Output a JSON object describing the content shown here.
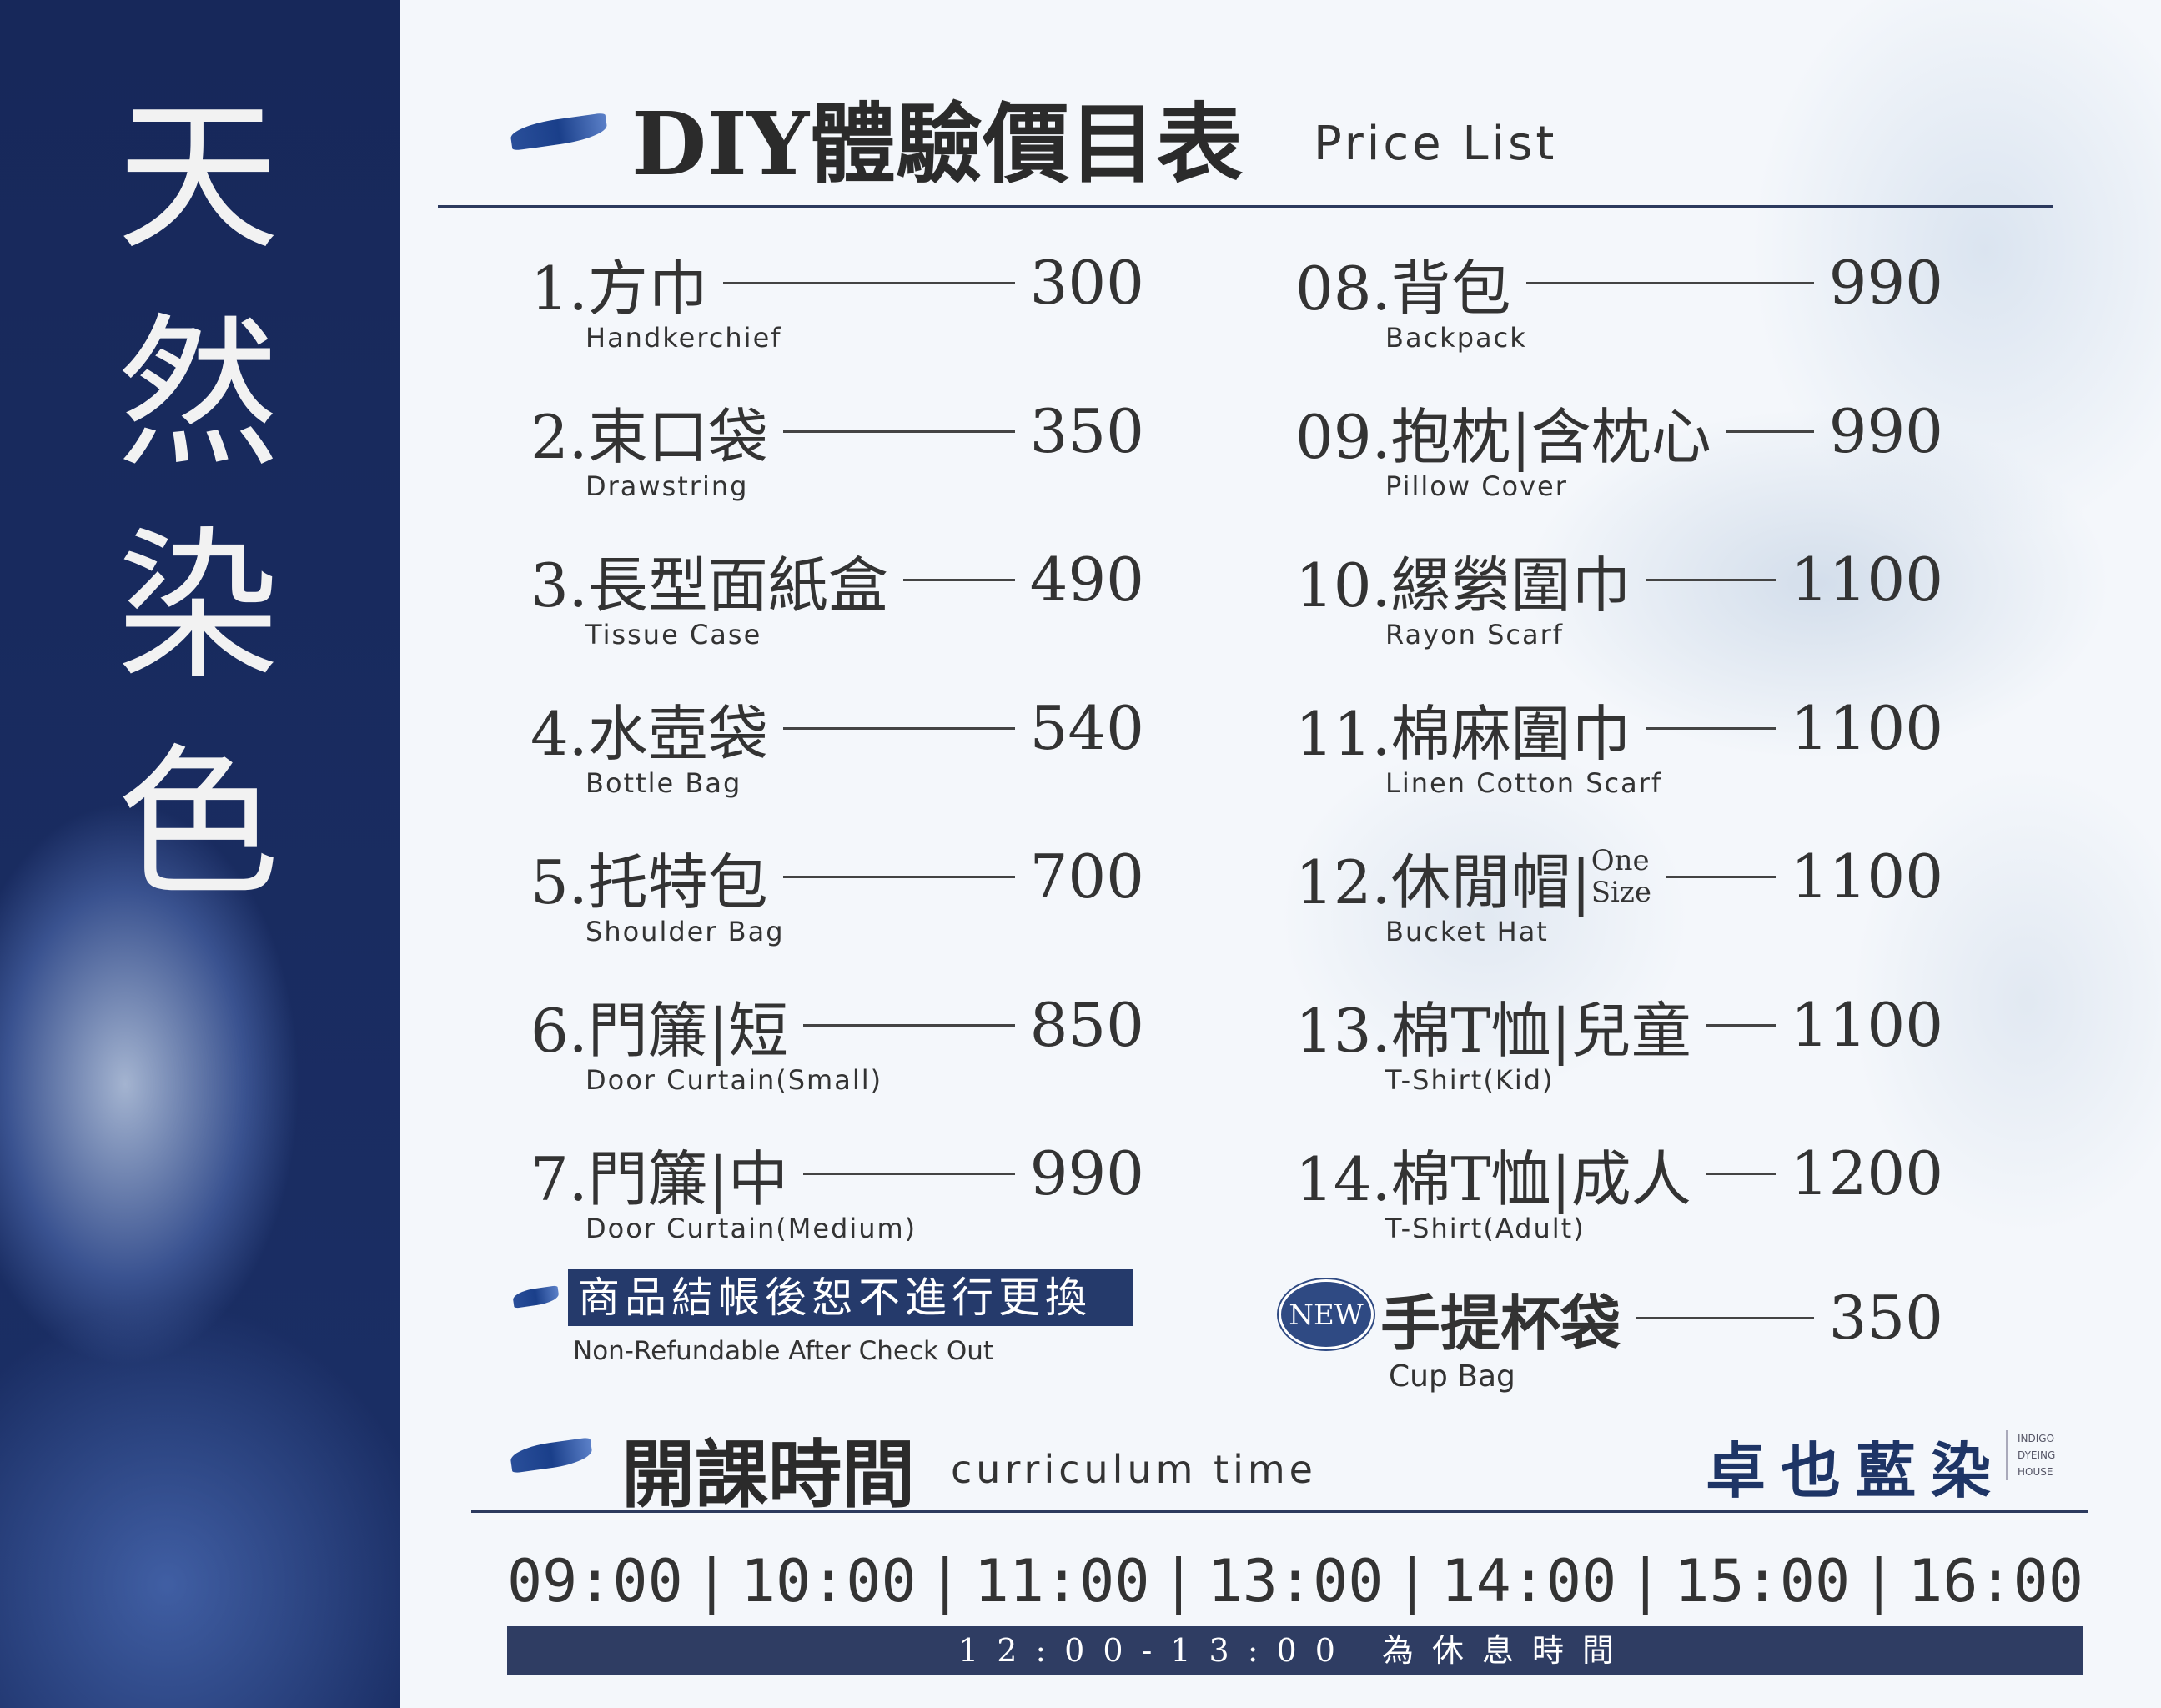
{
  "side_title": [
    "天",
    "然",
    "染",
    "色"
  ],
  "header": {
    "title": "DIY體驗價目表",
    "subtitle": "Price List"
  },
  "left_items": [
    {
      "name": "1.方巾",
      "en": "Handkerchief",
      "price": "300"
    },
    {
      "name": "2.束口袋",
      "en": "Drawstring",
      "price": "350"
    },
    {
      "name": "3.長型面紙盒",
      "en": "Tissue Case",
      "price": "490"
    },
    {
      "name": "4.水壺袋",
      "en": "Bottle Bag",
      "price": "540"
    },
    {
      "name": "5.托特包",
      "en": "Shoulder Bag",
      "price": "700"
    },
    {
      "name": "6.門簾|短",
      "en": "Door Curtain(Small)",
      "price": "850"
    },
    {
      "name": "7.門簾|中",
      "en": "Door Curtain(Medium)",
      "price": "990"
    }
  ],
  "right_items": [
    {
      "name": "08.背包",
      "en": "Backpack",
      "price": "990"
    },
    {
      "name": "09.抱枕|含枕心",
      "en": "Pillow Cover",
      "price": "990"
    },
    {
      "name": "10.縲縈圍巾",
      "en": "Rayon  Scarf",
      "price": "1100"
    },
    {
      "name": "11.棉麻圍巾",
      "en": "Linen Cotton Scarf",
      "price": "1100"
    },
    {
      "name": "12.休閒帽|",
      "sub1": "One",
      "sub2": "Size",
      "en": "Bucket Hat",
      "price": "1100"
    },
    {
      "name": "13.棉T恤|兒童",
      "en": "T-Shirt(Kid)",
      "price": "1100"
    },
    {
      "name": "14.棉T恤|成人",
      "en": "T-Shirt(Adult)",
      "price": "1200"
    }
  ],
  "notice": {
    "zh": "商品結帳後恕不進行更換",
    "en": "Non-Refundable After Check Out"
  },
  "new_item": {
    "badge": "NEW",
    "name": "手提杯袋",
    "en": "Cup Bag",
    "price": "350"
  },
  "schedule": {
    "title": "開課時間",
    "subtitle": "curriculum time",
    "times": [
      "09:00",
      "10:00",
      "11:00",
      "13:00",
      "14:00",
      "15:00",
      "16:00"
    ],
    "break": "12:00-13:00 為休息時間"
  },
  "logo": {
    "zh": "卓也藍染",
    "en": "INDIGO DYEING HOUSE"
  },
  "colors": {
    "indigo": "#1b2f66",
    "bar": "#2f3d63"
  }
}
